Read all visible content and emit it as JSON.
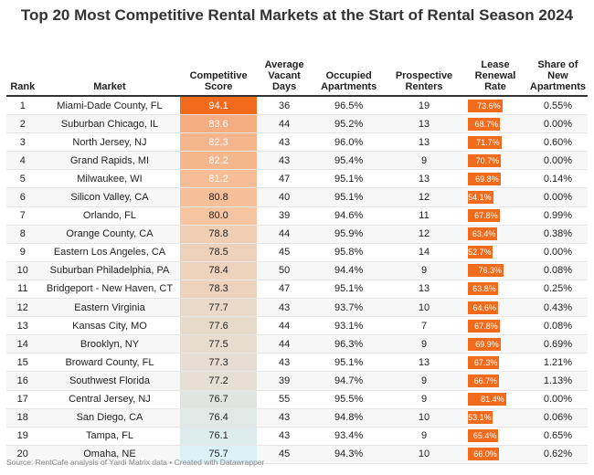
{
  "chart_data": {
    "type": "table",
    "title": "Top 20 Most Competitive Rental Markets at the Start of Rental Season 2024",
    "columns": [
      "Rank",
      "Market",
      "Competitive Score",
      "Average Vacant Days",
      "Occupied Apartments",
      "Prospective Renters",
      "Lease Renewal Rate",
      "Share of New Apartments"
    ],
    "rows": [
      [
        1,
        "Miami-Dade County, FL",
        "94.1",
        "36",
        "96.5%",
        "19",
        "73.6%",
        "0.55%"
      ],
      [
        2,
        "Suburban Chicago, IL",
        "83.6",
        "44",
        "95.2%",
        "13",
        "68.7%",
        "0.00%"
      ],
      [
        3,
        "North Jersey, NJ",
        "82.3",
        "43",
        "96.0%",
        "13",
        "71.7%",
        "0.60%"
      ],
      [
        4,
        "Grand Rapids, MI",
        "82.2",
        "43",
        "95.4%",
        "9",
        "70.7%",
        "0.00%"
      ],
      [
        5,
        "Milwaukee, WI",
        "81.2",
        "47",
        "95.1%",
        "13",
        "69.8%",
        "0.14%"
      ],
      [
        6,
        "Silicon Valley, CA",
        "80.8",
        "40",
        "95.1%",
        "12",
        "54.1%",
        "0.00%"
      ],
      [
        7,
        "Orlando, FL",
        "80.0",
        "39",
        "94.6%",
        "11",
        "67.8%",
        "0.99%"
      ],
      [
        8,
        "Orange County, CA",
        "78.8",
        "44",
        "95.9%",
        "12",
        "63.4%",
        "0.38%"
      ],
      [
        9,
        "Eastern Los Angeles, CA",
        "78.5",
        "45",
        "95.8%",
        "14",
        "52.7%",
        "0.00%"
      ],
      [
        10,
        "Suburban Philadelphia, PA",
        "78.4",
        "50",
        "94.4%",
        "9",
        "76.3%",
        "0.08%"
      ],
      [
        11,
        "Bridgeport - New Haven, CT",
        "78.3",
        "47",
        "95.1%",
        "13",
        "63.8%",
        "0.25%"
      ],
      [
        12,
        "Eastern Virginia",
        "77.7",
        "43",
        "93.7%",
        "10",
        "64.6%",
        "0.43%"
      ],
      [
        13,
        "Kansas City, MO",
        "77.6",
        "44",
        "93.1%",
        "7",
        "67.8%",
        "0.08%"
      ],
      [
        14,
        "Brooklyn, NY",
        "77.5",
        "44",
        "96.3%",
        "9",
        "69.9%",
        "0.69%"
      ],
      [
        15,
        "Broward County, FL",
        "77.3",
        "43",
        "95.1%",
        "13",
        "67.3%",
        "1.21%"
      ],
      [
        16,
        "Southwest Florida",
        "77.2",
        "39",
        "94.7%",
        "9",
        "66.7%",
        "1.13%"
      ],
      [
        17,
        "Central Jersey, NJ",
        "76.7",
        "55",
        "95.5%",
        "9",
        "81.4%",
        "0.00%"
      ],
      [
        18,
        "San Diego, CA",
        "76.4",
        "43",
        "94.8%",
        "10",
        "53.1%",
        "0.06%"
      ],
      [
        19,
        "Tampa, FL",
        "76.1",
        "43",
        "93.4%",
        "9",
        "65.4%",
        "0.65%"
      ],
      [
        20,
        "Omaha, NE",
        "75.7",
        "45",
        "94.3%",
        "10",
        "66.0%",
        "0.62%"
      ]
    ],
    "score_color_scale": [
      "#f26b1d",
      "#f5c7a6",
      "#e3e2da",
      "#daf2f6"
    ],
    "bar_color": "#f26b1d"
  },
  "source": "Source: RentCafe analysis of Yardi Matrix data • Created with Datawrapper"
}
